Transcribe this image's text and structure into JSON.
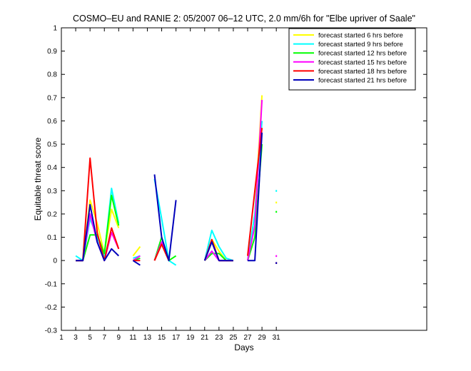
{
  "chart_data": {
    "type": "line",
    "title": "COSMO–EU and RANIE 2: 05/2007 06–12 UTC, 2.0 mm/6h for \"Elbe upriver of Saale\"",
    "xlabel": "Days",
    "ylabel": "Equitable threat score",
    "xlim": [
      1,
      52
    ],
    "ylim": [
      -0.3,
      1
    ],
    "xticks": [
      "1",
      "3",
      "5",
      "7",
      "9",
      "11",
      "13",
      "15",
      "17",
      "19",
      "21",
      "23",
      "25",
      "27",
      "29",
      "31"
    ],
    "yticks": [
      "-0.3",
      "-0.2",
      "-0.1",
      "0",
      "0.1",
      "0.2",
      "0.3",
      "0.4",
      "0.5",
      "0.6",
      "0.7",
      "0.8",
      "0.9",
      "1"
    ],
    "legend_position": "top-right",
    "series": [
      {
        "name": "forecast started 6 hrs before",
        "color": "#ffff00",
        "segments": [
          [
            [
              3,
              0.0
            ],
            [
              4,
              0.0
            ],
            [
              5,
              0.26
            ],
            [
              6,
              0.16
            ],
            [
              7,
              0.03
            ],
            [
              8,
              0.22
            ],
            [
              9,
              0.14
            ]
          ],
          [
            [
              11,
              0.02
            ],
            [
              12,
              0.06
            ]
          ],
          [
            [
              14,
              0.0
            ],
            [
              15,
              0.07
            ],
            [
              16,
              0.0
            ]
          ],
          [
            [
              21,
              0.0
            ],
            [
              22,
              0.09
            ],
            [
              23,
              0.04
            ],
            [
              24,
              0.0
            ],
            [
              25,
              0.0
            ]
          ],
          [
            [
              27,
              0.0
            ],
            [
              28,
              0.2
            ],
            [
              29,
              0.71
            ]
          ]
        ],
        "points": [
          [
            31,
            0.25
          ]
        ]
      },
      {
        "name": "forecast started 9 hrs before",
        "color": "#00ffff",
        "segments": [
          [
            [
              3,
              0.02
            ],
            [
              4,
              0.0
            ],
            [
              5,
              0.18
            ],
            [
              6,
              0.1
            ],
            [
              7,
              0.02
            ],
            [
              8,
              0.31
            ],
            [
              9,
              0.16
            ]
          ],
          [
            [
              11,
              0.01
            ],
            [
              12,
              0.02
            ]
          ],
          [
            [
              14,
              0.35
            ],
            [
              15,
              0.18
            ],
            [
              16,
              0.0
            ],
            [
              17,
              -0.02
            ]
          ],
          [
            [
              21,
              0.0
            ],
            [
              22,
              0.13
            ],
            [
              23,
              0.06
            ],
            [
              24,
              0.01
            ],
            [
              25,
              0.0
            ]
          ],
          [
            [
              27,
              0.0
            ],
            [
              28,
              0.2
            ],
            [
              29,
              0.6
            ]
          ]
        ],
        "points": [
          [
            31,
            0.3
          ]
        ]
      },
      {
        "name": "forecast started 12 hrs before",
        "color": "#00ff00",
        "segments": [
          [
            [
              3,
              0.0
            ],
            [
              4,
              0.0
            ],
            [
              5,
              0.11
            ],
            [
              6,
              0.11
            ],
            [
              7,
              0.03
            ],
            [
              8,
              0.28
            ],
            [
              9,
              0.15
            ]
          ],
          [
            [
              11,
              0.0
            ],
            [
              12,
              0.01
            ]
          ],
          [
            [
              14,
              0.0
            ],
            [
              15,
              0.1
            ],
            [
              16,
              0.0
            ],
            [
              17,
              0.02
            ]
          ],
          [
            [
              21,
              0.0
            ],
            [
              22,
              0.03
            ],
            [
              23,
              0.03
            ],
            [
              24,
              0.0
            ],
            [
              25,
              0.0
            ]
          ],
          [
            [
              27,
              0.0
            ],
            [
              28,
              0.1
            ],
            [
              29,
              0.5
            ]
          ]
        ],
        "points": [
          [
            31,
            0.21
          ]
        ]
      },
      {
        "name": "forecast started 15 hrs before",
        "color": "#ff00ff",
        "segments": [
          [
            [
              3,
              0.0
            ],
            [
              4,
              0.0
            ],
            [
              5,
              0.2
            ],
            [
              6,
              0.08
            ],
            [
              7,
              0.0
            ],
            [
              8,
              0.12
            ],
            [
              9,
              0.05
            ]
          ],
          [
            [
              11,
              0.0
            ],
            [
              12,
              0.02
            ]
          ],
          [
            [
              14,
              0.0
            ],
            [
              15,
              0.08
            ],
            [
              16,
              0.0
            ]
          ],
          [
            [
              21,
              0.0
            ],
            [
              22,
              0.04
            ],
            [
              23,
              0.0
            ],
            [
              24,
              0.0
            ],
            [
              25,
              0.0
            ]
          ],
          [
            [
              27,
              0.0
            ],
            [
              28,
              0.15
            ],
            [
              29,
              0.69
            ]
          ]
        ],
        "points": [
          [
            31,
            0.02
          ]
        ]
      },
      {
        "name": "forecast started 18 hrs before",
        "color": "#ff0000",
        "segments": [
          [
            [
              3,
              0.0
            ],
            [
              4,
              0.0
            ],
            [
              5,
              0.44
            ],
            [
              6,
              0.12
            ],
            [
              7,
              0.0
            ],
            [
              8,
              0.14
            ],
            [
              9,
              0.05
            ]
          ],
          [
            [
              11,
              0.0
            ],
            [
              12,
              0.0
            ]
          ],
          [
            [
              14,
              0.0
            ],
            [
              15,
              0.07
            ],
            [
              16,
              0.0
            ]
          ],
          [
            [
              21,
              0.0
            ],
            [
              22,
              0.09
            ],
            [
              23,
              0.0
            ],
            [
              24,
              0.0
            ],
            [
              25,
              0.0
            ]
          ],
          [
            [
              27,
              0.02
            ],
            [
              28,
              0.3
            ],
            [
              29,
              0.57
            ]
          ]
        ],
        "points": [
          [
            31,
            -0.01
          ]
        ]
      },
      {
        "name": "forecast started 21 hrs before",
        "color": "#0000bb",
        "segments": [
          [
            [
              3,
              0.0
            ],
            [
              4,
              0.0
            ],
            [
              5,
              0.24
            ],
            [
              6,
              0.08
            ],
            [
              7,
              0.0
            ],
            [
              8,
              0.05
            ],
            [
              9,
              0.02
            ]
          ],
          [
            [
              11,
              0.0
            ],
            [
              12,
              -0.02
            ]
          ],
          [
            [
              14,
              0.37
            ],
            [
              15,
              0.1
            ],
            [
              16,
              0.0
            ],
            [
              17,
              0.26
            ]
          ],
          [
            [
              21,
              0.0
            ],
            [
              22,
              0.08
            ],
            [
              23,
              0.0
            ],
            [
              24,
              0.0
            ],
            [
              25,
              0.0
            ]
          ],
          [
            [
              27,
              0.0
            ],
            [
              28,
              0.0
            ],
            [
              29,
              0.55
            ]
          ]
        ],
        "points": [
          [
            31,
            -0.01
          ]
        ]
      }
    ]
  }
}
